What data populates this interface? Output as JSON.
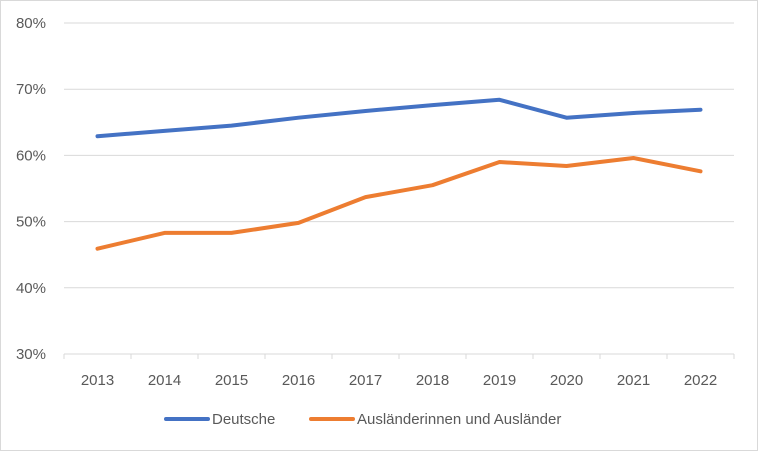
{
  "chart_data": {
    "type": "line",
    "categories": [
      "2013",
      "2014",
      "2015",
      "2016",
      "2017",
      "2018",
      "2019",
      "2020",
      "2021",
      "2022"
    ],
    "series": [
      {
        "name": "Deutsche",
        "color": "#4472c4",
        "values": [
          0.629,
          0.637,
          0.645,
          0.657,
          0.667,
          0.676,
          0.684,
          0.657,
          0.664,
          0.669
        ]
      },
      {
        "name": "Ausländerinnen und Ausländer",
        "color": "#ed7d31",
        "values": [
          0.459,
          0.483,
          0.483,
          0.498,
          0.537,
          0.555,
          0.59,
          0.584,
          0.596,
          0.576
        ]
      }
    ],
    "ylim": [
      0.3,
      0.8
    ],
    "yticks": [
      0.3,
      0.4,
      0.5,
      0.6,
      0.7,
      0.8
    ],
    "ytick_labels": [
      "30%",
      "40%",
      "50%",
      "60%",
      "70%",
      "80%"
    ],
    "grid": true,
    "legend": "bottom",
    "title": "",
    "xlabel": "",
    "ylabel": ""
  }
}
